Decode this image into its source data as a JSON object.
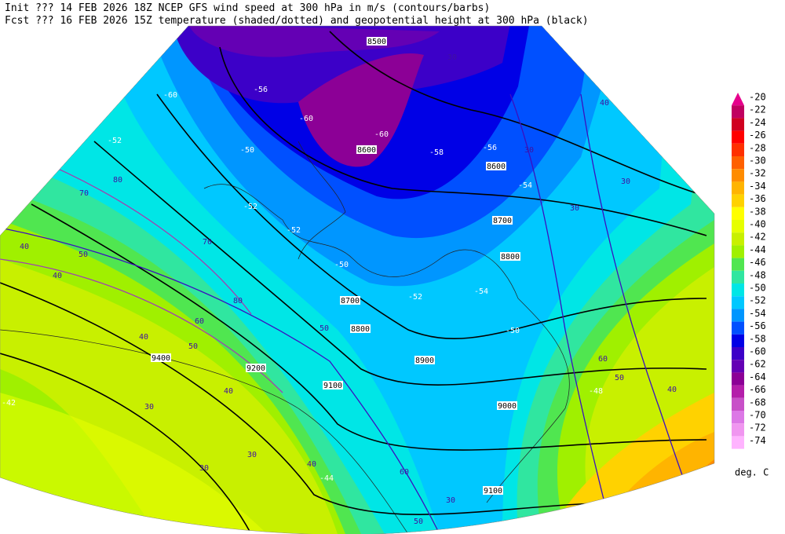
{
  "header": {
    "line1": "Init  ??? 14 FEB 2026 18Z  NCEP GFS wind speed at 300 hPa in m/s (contours/barbs)",
    "line2": "Fcst ??? 16 FEB 2026 15Z  temperature (shaded/dotted) and geopotential height at 300 hPa (black)"
  },
  "colorbar": {
    "unit": "deg. C",
    "levels": [
      {
        "label": -20,
        "color": "#e6008c"
      },
      {
        "label": -22,
        "color": "#c00060"
      },
      {
        "label": -24,
        "color": "#d00020"
      },
      {
        "label": -26,
        "color": "#ff0000"
      },
      {
        "label": -28,
        "color": "#ff3000"
      },
      {
        "label": -30,
        "color": "#ff6000"
      },
      {
        "label": -32,
        "color": "#ff8c00"
      },
      {
        "label": -34,
        "color": "#ffb400"
      },
      {
        "label": -36,
        "color": "#ffd200"
      },
      {
        "label": -38,
        "color": "#ffff00"
      },
      {
        "label": -40,
        "color": "#e6ff00"
      },
      {
        "label": -42,
        "color": "#c8f000"
      },
      {
        "label": -44,
        "color": "#a0f000"
      },
      {
        "label": -46,
        "color": "#50e650"
      },
      {
        "label": -48,
        "color": "#30e6a0"
      },
      {
        "label": -50,
        "color": "#00e6e6"
      },
      {
        "label": -52,
        "color": "#00c8ff"
      },
      {
        "label": -54,
        "color": "#0096ff"
      },
      {
        "label": -56,
        "color": "#0050ff"
      },
      {
        "label": -58,
        "color": "#0000e6"
      },
      {
        "label": -60,
        "color": "#3c00c8"
      },
      {
        "label": -62,
        "color": "#6400b4"
      },
      {
        "label": -64,
        "color": "#8c0096"
      },
      {
        "label": -66,
        "color": "#b41eaa"
      },
      {
        "label": -68,
        "color": "#c850c8"
      },
      {
        "label": -70,
        "color": "#dc78e6"
      },
      {
        "label": -72,
        "color": "#f096f0"
      },
      {
        "label": -74,
        "color": "#ffb4ff"
      }
    ]
  },
  "contour_labels": {
    "height": [
      8500,
      8600,
      8600,
      8700,
      8800,
      8700,
      8800,
      8900,
      9000,
      9100,
      9200,
      9100,
      9400
    ],
    "wind": [
      30,
      30,
      40,
      30,
      30,
      40,
      40,
      50,
      70,
      80,
      70,
      80,
      60,
      50,
      40,
      50,
      40,
      30,
      30,
      30,
      40,
      60,
      50,
      30,
      50,
      60,
      40
    ],
    "temperature": [
      -60,
      -60,
      -56,
      -54,
      -52,
      -50,
      -52,
      -54,
      -50,
      -48,
      -44,
      -42,
      -52,
      -50,
      -56,
      -60,
      -58,
      -52
    ]
  }
}
